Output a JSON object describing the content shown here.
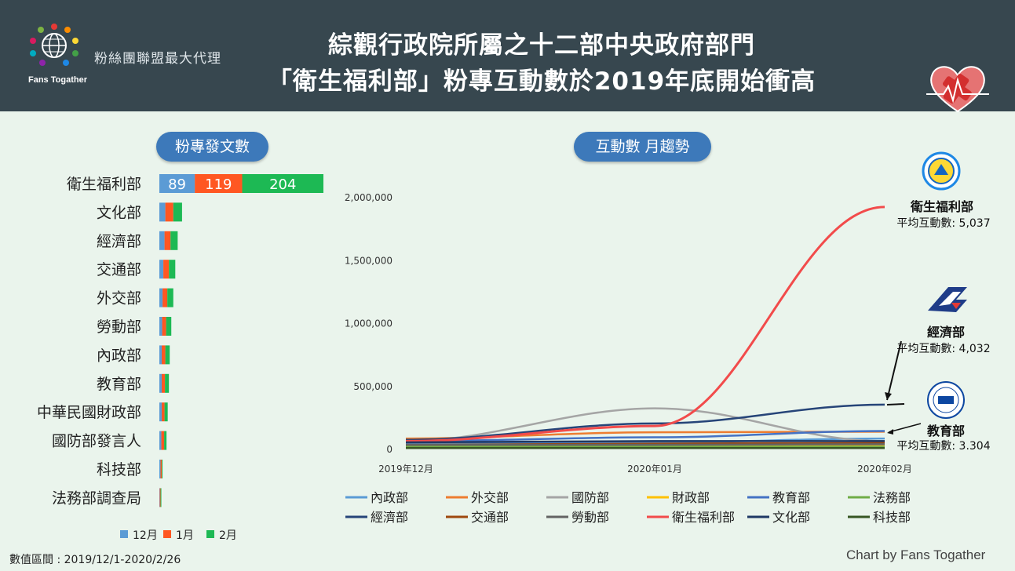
{
  "header": {
    "brand": "Fans Togather",
    "tagline": "粉絲團聯盟最大代理",
    "title_line1": "綜觀行政院所屬之十二部中央政府部門",
    "title_line2": "「衛生福利部」粉專互動數於2019年底開始衝高"
  },
  "footer": {
    "range": "數值區間 : 2019/12/1-2020/2/26",
    "credit": "Chart by Fans Togather"
  },
  "colors": {
    "header_bg": "#37474f",
    "pill": "#3d79ba",
    "dec": "#5b9bd5",
    "jan": "#ff5722",
    "feb": "#1db954"
  },
  "chart_data": [
    {
      "type": "bar",
      "stacked": true,
      "orientation": "horizontal",
      "title": "粉專發文數",
      "categories": [
        "衛生福利部",
        "文化部",
        "經濟部",
        "交通部",
        "外交部",
        "勞動部",
        "內政部",
        "教育部",
        "中華民國財政部",
        "國防部發言人",
        "科技部",
        "法務部調查局"
      ],
      "series": [
        {
          "name": "12月",
          "color": "#5b9bd5",
          "values": [
            89,
            15,
            13,
            10,
            8,
            7,
            6,
            6,
            6,
            5,
            3,
            1
          ]
        },
        {
          "name": "1月",
          "color": "#ff5722",
          "values": [
            119,
            20,
            15,
            14,
            12,
            10,
            9,
            8,
            7,
            7,
            3,
            2
          ]
        },
        {
          "name": "2月",
          "color": "#1db954",
          "values": [
            204,
            22,
            18,
            16,
            15,
            13,
            11,
            10,
            8,
            6,
            2,
            2
          ]
        }
      ],
      "data_labels": [
        "89",
        "119",
        "204"
      ],
      "legend": "bottom"
    },
    {
      "type": "line",
      "title": "互動數 月趨勢",
      "x": [
        "2019年12月",
        "2020年01月",
        "2020年02月"
      ],
      "ylim": [
        0,
        2000000
      ],
      "yticks": [
        "0",
        "500,000",
        "1,000,000",
        "1,500,000",
        "2,000,000"
      ],
      "legend": "bottom",
      "series": [
        {
          "name": "內政部",
          "color": "#5b9bd5",
          "values": [
            40000,
            50000,
            80000
          ]
        },
        {
          "name": "外交部",
          "color": "#ed7d31",
          "values": [
            80000,
            130000,
            135000
          ]
        },
        {
          "name": "國防部",
          "color": "#a5a5a5",
          "values": [
            60000,
            320000,
            60000
          ]
        },
        {
          "name": "財政部",
          "color": "#ffc000",
          "values": [
            20000,
            25000,
            30000
          ]
        },
        {
          "name": "教育部",
          "color": "#4472c4",
          "values": [
            60000,
            90000,
            140000
          ]
        },
        {
          "name": "法務部",
          "color": "#70ad47",
          "values": [
            15000,
            15000,
            15000
          ]
        },
        {
          "name": "經濟部",
          "color": "#264478",
          "values": [
            70000,
            200000,
            350000
          ]
        },
        {
          "name": "交通部",
          "color": "#9e480e",
          "values": [
            30000,
            40000,
            45000
          ]
        },
        {
          "name": "勞動部",
          "color": "#636363",
          "values": [
            30000,
            30000,
            35000
          ]
        },
        {
          "name": "衛生福利部",
          "color": "#f24b4b",
          "values": [
            60000,
            180000,
            1920000
          ]
        },
        {
          "name": "文化部",
          "color": "#1f3864",
          "values": [
            50000,
            60000,
            60000
          ]
        },
        {
          "name": "科技部",
          "color": "#375623",
          "values": [
            5000,
            5000,
            5000
          ]
        }
      ],
      "annotations": [
        {
          "name": "衛生福利部",
          "avg_label": "平均互動數: 5,037"
        },
        {
          "name": "經濟部",
          "avg_label": "平均互動數: 4,032"
        },
        {
          "name": "教育部",
          "avg_label": "平均互動數: 3.304"
        }
      ]
    }
  ]
}
